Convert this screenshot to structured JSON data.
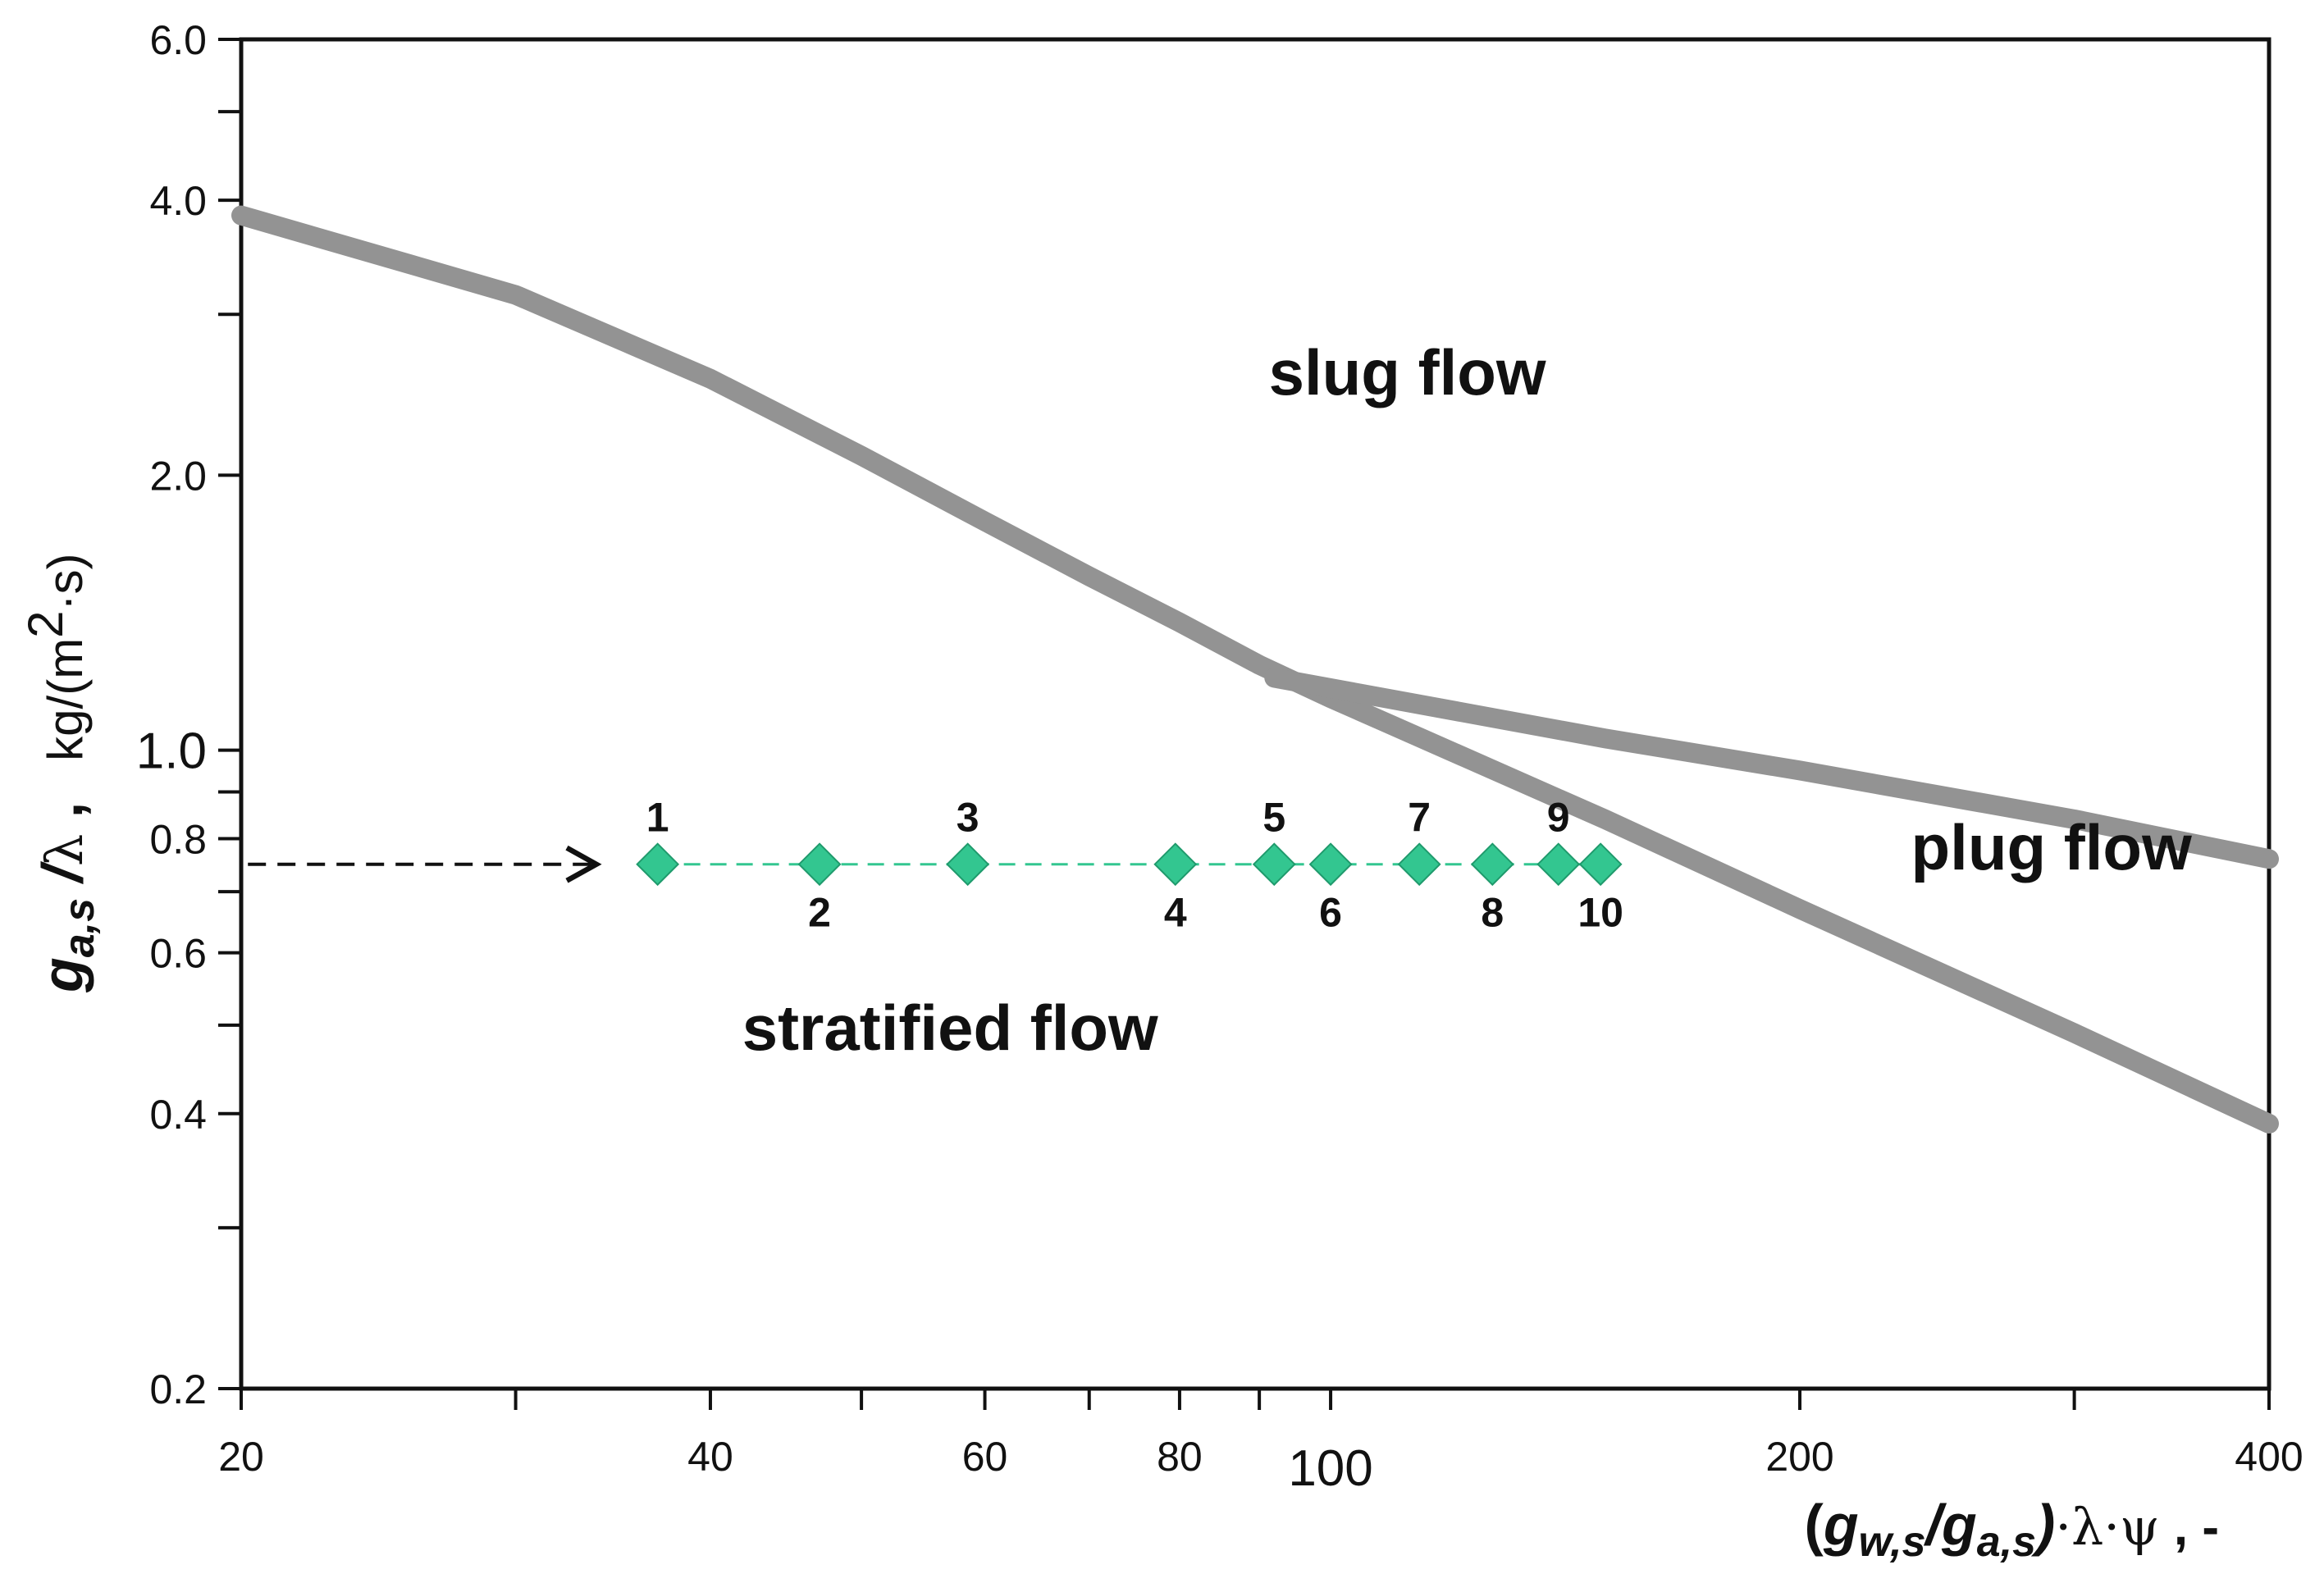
{
  "chart_data": {
    "type": "scatter",
    "title": "",
    "x_scale": "log",
    "y_scale": "log",
    "xlim": [
      20,
      400
    ],
    "ylim": [
      0.2,
      6.0
    ],
    "x_ticks": [
      {
        "value": 20,
        "label": "20"
      },
      {
        "value": 40,
        "label": "40"
      },
      {
        "value": 60,
        "label": "60"
      },
      {
        "value": 80,
        "label": "80"
      },
      {
        "value": 100,
        "label": "100",
        "big": true
      },
      {
        "value": 200,
        "label": "200"
      },
      {
        "value": 400,
        "label": "400"
      }
    ],
    "x_minor_ticks": [
      30,
      50,
      70,
      90,
      300
    ],
    "y_ticks": [
      {
        "value": 0.2,
        "label": "0.2"
      },
      {
        "value": 0.4,
        "label": "0.4"
      },
      {
        "value": 0.6,
        "label": "0.6"
      },
      {
        "value": 0.8,
        "label": "0.8"
      },
      {
        "value": 1.0,
        "label": "1.0",
        "big": true
      },
      {
        "value": 2.0,
        "label": "2.0"
      },
      {
        "value": 4.0,
        "label": "4.0"
      },
      {
        "value": 6.0,
        "label": "6.0"
      }
    ],
    "y_minor_ticks": [
      0.3,
      0.5,
      0.7,
      0.9,
      3.0,
      5.0
    ],
    "xlabel": {
      "g1": "g",
      "sub1": "w,s",
      "slash": "/",
      "g2": "g",
      "sub2": "a,s",
      "close": ")",
      "open": "(",
      "greek": "·λ·ψ",
      "suffix": " ,  -"
    },
    "ylabel": {
      "g": "g",
      "sub": "a,s",
      "slash": " /",
      "greek": "λ",
      "comma": " ,",
      "unit_pre": "kg/(m",
      "unit_sup": "2",
      "unit_post": "·s)"
    },
    "boundaries": [
      {
        "name": "stratified-slug boundary",
        "color": "#939393",
        "x": [
          20,
          30,
          40,
          50,
          60,
          70,
          80,
          90,
          100,
          150,
          200,
          300,
          400
        ],
        "y": [
          3.85,
          3.15,
          2.55,
          2.1,
          1.78,
          1.55,
          1.38,
          1.24,
          1.14,
          0.84,
          0.67,
          0.49,
          0.39
        ]
      },
      {
        "name": "slug-plug boundary",
        "color": "#939393",
        "x": [
          92,
          150,
          200,
          300,
          400
        ],
        "y": [
          1.2,
          1.03,
          0.95,
          0.84,
          0.76
        ]
      }
    ],
    "arrow": {
      "x_start": 20.2,
      "x_end": 33.8,
      "y": 0.75
    },
    "series": [
      {
        "name": "operating points",
        "color": "#33c690",
        "points": [
          {
            "label": "1",
            "x": 37.0,
            "y": 0.75,
            "label_pos": "above"
          },
          {
            "label": "2",
            "x": 47.0,
            "y": 0.75,
            "label_pos": "below"
          },
          {
            "label": "3",
            "x": 58.5,
            "y": 0.75,
            "label_pos": "above"
          },
          {
            "label": "4",
            "x": 79.5,
            "y": 0.75,
            "label_pos": "below"
          },
          {
            "label": "5",
            "x": 92.0,
            "y": 0.75,
            "label_pos": "above"
          },
          {
            "label": "6",
            "x": 100.0,
            "y": 0.75,
            "label_pos": "below"
          },
          {
            "label": "7",
            "x": 114.0,
            "y": 0.75,
            "label_pos": "above"
          },
          {
            "label": "8",
            "x": 127.0,
            "y": 0.75,
            "label_pos": "below"
          },
          {
            "label": "9",
            "x": 140.0,
            "y": 0.75,
            "label_pos": "above"
          },
          {
            "label": "10",
            "x": 149.0,
            "y": 0.75,
            "label_pos": "below"
          }
        ]
      }
    ],
    "regions": [
      {
        "label": "slug flow",
        "x": 112,
        "y": 2.45
      },
      {
        "label": "plug flow",
        "x": 290,
        "y": 0.74
      },
      {
        "label": "stratified flow",
        "x": 57,
        "y": 0.47
      }
    ]
  }
}
